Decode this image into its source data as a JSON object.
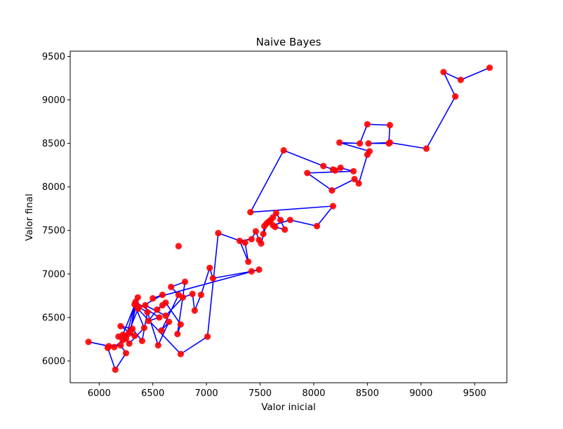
{
  "chart_data": {
    "type": "line",
    "title": "Naive Bayes",
    "xlabel": "Valor inicial",
    "ylabel": "Valor final",
    "xlim": [
      5730,
      9800
    ],
    "ylim": [
      5750,
      9560
    ],
    "xticks": [
      6000,
      6500,
      7000,
      7500,
      8000,
      8500,
      9000,
      9500
    ],
    "yticks": [
      6000,
      6500,
      7000,
      7500,
      8000,
      8500,
      9000,
      9500
    ],
    "grid": false,
    "legend": "none",
    "line_color": "#0000ff",
    "marker_color": "#ff0000",
    "series": [
      {
        "x": [
          6150,
          6080,
          6200,
          6250,
          5900,
          6090,
          6140,
          6220,
          6180,
          6270,
          6330,
          6200,
          6310,
          6400,
          6450,
          6370,
          6250,
          6330,
          6420,
          6280,
          6220,
          6360,
          6290,
          6340,
          6560,
          6460,
          6540,
          6590,
          6620,
          6760,
          6730,
          6800,
          6670,
          6740,
          6580,
          6650,
          6550,
          6430,
          6620,
          6780,
          6870,
          6890,
          6950,
          7030,
          7060,
          7420,
          7490,
          6740,
          6590,
          6500,
          6360,
          6760,
          7010,
          7110,
          7360,
          7390,
          7310,
          7420,
          7460,
          7490,
          7510,
          7560,
          7530,
          7540,
          7600,
          7620,
          7650,
          7690,
          7730,
          7640,
          7580,
          7620,
          7780,
          8030,
          8180,
          7410,
          7720,
          8090,
          8180,
          8200,
          8250,
          8370,
          7940,
          8170,
          8380,
          8420,
          8500,
          8520,
          8240,
          8430,
          8500,
          8710,
          8700,
          8510,
          8710,
          9050,
          9320,
          9210,
          9370,
          9640
        ],
        "y": [
          5900,
          6150,
          6180,
          6090,
          6220,
          6170,
          6160,
          6240,
          6280,
          6310,
          6290,
          6400,
          6370,
          6230,
          6560,
          6620,
          6260,
          6650,
          6380,
          6200,
          6300,
          6730,
          6340,
          6680,
          6500,
          6460,
          6590,
          6640,
          6670,
          6420,
          6310,
          6910,
          6850,
          6760,
          6350,
          6450,
          6180,
          6640,
          6520,
          6730,
          6770,
          6580,
          6760,
          7070,
          6950,
          7030,
          7050,
          7320,
          6760,
          6720,
          6600,
          6080,
          6280,
          7470,
          7360,
          7140,
          7380,
          7400,
          7490,
          7390,
          7350,
          7580,
          7460,
          7550,
          7620,
          7650,
          7700,
          7620,
          7510,
          7540,
          7600,
          7560,
          7620,
          7550,
          7780,
          7710,
          8420,
          8240,
          8200,
          8190,
          8220,
          8180,
          8160,
          7960,
          8090,
          8040,
          8370,
          8410,
          8510,
          8500,
          8720,
          8710,
          8500,
          8500,
          8510,
          8440,
          9040,
          9320,
          9230,
          9370
        ],
        "line_order": [
          1,
          0,
          3,
          2,
          5,
          4,
          6,
          7,
          8,
          9,
          10,
          11,
          12,
          13,
          14,
          15,
          16,
          17,
          18,
          19,
          20,
          21,
          22,
          23,
          24,
          25,
          26,
          27,
          28,
          29,
          30,
          31,
          32,
          33,
          34,
          35,
          36,
          37,
          38,
          39,
          40,
          41,
          42,
          43,
          44,
          45,
          46,
          49,
          48,
          50,
          51,
          52,
          53,
          54,
          55,
          56,
          57,
          58,
          59,
          60,
          61,
          62,
          63,
          64,
          65,
          66,
          67,
          68,
          69,
          70,
          71,
          72,
          73,
          74,
          75,
          76,
          77,
          78,
          79,
          80,
          81,
          82,
          83,
          84,
          85,
          86,
          87,
          88,
          89,
          90,
          91,
          92,
          93,
          94,
          95,
          96,
          97,
          98,
          99
        ]
      }
    ]
  }
}
